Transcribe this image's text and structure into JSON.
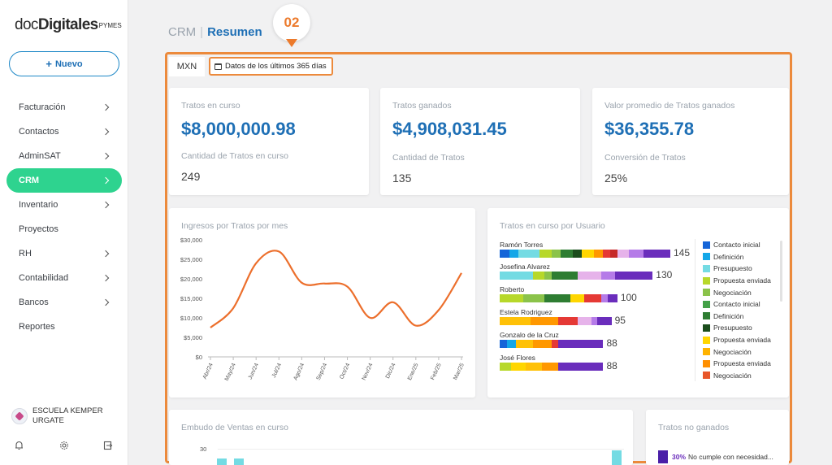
{
  "sidebar": {
    "logo": {
      "part1": "doc",
      "part2": "Digitales",
      "part3": "PYMES"
    },
    "new_button": "Nuevo",
    "items": [
      {
        "label": "Facturación",
        "chevron": true,
        "active": false
      },
      {
        "label": "Contactos",
        "chevron": true,
        "active": false
      },
      {
        "label": "AdminSAT",
        "chevron": true,
        "active": false
      },
      {
        "label": "CRM",
        "chevron": true,
        "active": true
      },
      {
        "label": "Inventario",
        "chevron": true,
        "active": false
      },
      {
        "label": "Proyectos",
        "chevron": false,
        "active": false
      },
      {
        "label": "RH",
        "chevron": true,
        "active": false
      },
      {
        "label": "Contabilidad",
        "chevron": true,
        "active": false
      },
      {
        "label": "Bancos",
        "chevron": true,
        "active": false
      },
      {
        "label": "Reportes",
        "chevron": false,
        "active": false
      }
    ],
    "company": "ESCUELA KEMPER URGATE",
    "bottom_icons": [
      "bell-icon",
      "gear-icon",
      "logout-icon"
    ]
  },
  "breadcrumb": {
    "root": "CRM",
    "separator": "|",
    "current": "Resumen"
  },
  "marker": {
    "label": "02"
  },
  "filters": {
    "currency": "MXN",
    "date_range": "Datos de los últimos 365 días"
  },
  "kpis": [
    {
      "title": "Tratos en curso",
      "value": "$8,000,000.98",
      "sub_title": "Cantidad de Tratos en curso",
      "sub_value": "249"
    },
    {
      "title": "Tratos ganados",
      "value": "$4,908,031.45",
      "sub_title": "Cantidad de Tratos",
      "sub_value": "135"
    },
    {
      "title": "Valor promedio de Tratos ganados",
      "value": "$36,355.78",
      "sub_title": "Conversión de Tratos",
      "sub_value": "25%"
    }
  ],
  "chart_data": [
    {
      "type": "line",
      "title": "Ingresos por Tratos por mes",
      "x": [
        "Abr/24",
        "May/24",
        "Jun/24",
        "Jul/24",
        "Ago/24",
        "Sep/24",
        "Oct/24",
        "Nov/24",
        "Dic/24",
        "Ene/25",
        "Feb/25",
        "Mar/25"
      ],
      "y_ticks": [
        "$30,000",
        "$25,000",
        "$20,000",
        "$15,000",
        "$10,000",
        "$5,000",
        "$0"
      ],
      "ylim": [
        0,
        30000
      ],
      "series": [
        {
          "values": [
            7500,
            12500,
            24000,
            27000,
            19000,
            18800,
            18000,
            10000,
            14000,
            8000,
            12000,
            21500
          ],
          "color": "#ec6f2c"
        }
      ],
      "grid": false
    },
    {
      "type": "bar",
      "orientation": "horizontal",
      "stacked": true,
      "title": "Tratos en curso por Usuario",
      "categories": [
        "Ramón Torres",
        "Josefina Alvarez",
        "Roberto",
        "Estela Rodriguez",
        "Gonzalo de la Cruz",
        "José Flores"
      ],
      "totals": [
        145,
        130,
        100,
        95,
        88,
        88
      ],
      "segments": [
        [
          "#1565d8:8",
          "#14a7e8:8",
          "#74dbe3:18",
          "#b7d82a:10",
          "#8bc34a:8",
          "#2e7d32:10",
          "#1b4d1c:8",
          "#ffd600:10",
          "#ff9800:8",
          "#e53935:6",
          "#c62828:6",
          "#e6b3ea:10",
          "#b57be8:12",
          "#6a2dbc:23"
        ],
        [
          "#74dbe3:28",
          "#b7d82a:10",
          "#8bc34a:6",
          "#2e7d32:22",
          "#e6b3ea:20",
          "#b57be8:12",
          "#6a2dbc:32"
        ],
        [
          "#b7d82a:20",
          "#8bc34a:18",
          "#2e7d32:22",
          "#ffd600:12",
          "#e53935:14",
          "#b57be8:6",
          "#6a2dbc:8"
        ],
        [
          "#ffc107:26",
          "#ff9800:24",
          "#e53935:16",
          "#e6b3ea:12",
          "#b57be8:5",
          "#6a2dbc:12"
        ],
        [
          "#1565d8:6",
          "#14a7e8:8",
          "#ffc107:14",
          "#ff9800:16",
          "#e53935:6",
          "#6a2dbc:38"
        ],
        [
          "#b7d82a:10",
          "#ffd600:12",
          "#ffc107:14",
          "#ff9800:14",
          "#6a2dbc:38"
        ]
      ],
      "legend": [
        {
          "label": "Contacto inicial",
          "color": "#1565d8"
        },
        {
          "label": "Definición",
          "color": "#14a7e8"
        },
        {
          "label": "Presupuesto",
          "color": "#74dbe3"
        },
        {
          "label": "Propuesta enviada",
          "color": "#b7d82a"
        },
        {
          "label": "Negociación",
          "color": "#8bc34a"
        },
        {
          "label": "Contacto inicial",
          "color": "#43a047"
        },
        {
          "label": "Definición",
          "color": "#2e7d32"
        },
        {
          "label": "Presupuesto",
          "color": "#1b4d1c"
        },
        {
          "label": "Propuesta enviada",
          "color": "#ffd600"
        },
        {
          "label": "Negociación",
          "color": "#ffb300"
        },
        {
          "label": "Propuesta enviada",
          "color": "#ff8f00"
        },
        {
          "label": "Negociación",
          "color": "#e8562a"
        }
      ],
      "legend_placement": "right"
    },
    {
      "type": "bar",
      "title": "Embudo de Ventas en curso",
      "y_ticks": [
        "30"
      ]
    },
    {
      "type": "pie",
      "title": "Tratos no ganados",
      "entries": [
        {
          "percent": "30%",
          "label": "No cumple con necesidad...",
          "color": "#4a1fa8"
        }
      ]
    }
  ]
}
